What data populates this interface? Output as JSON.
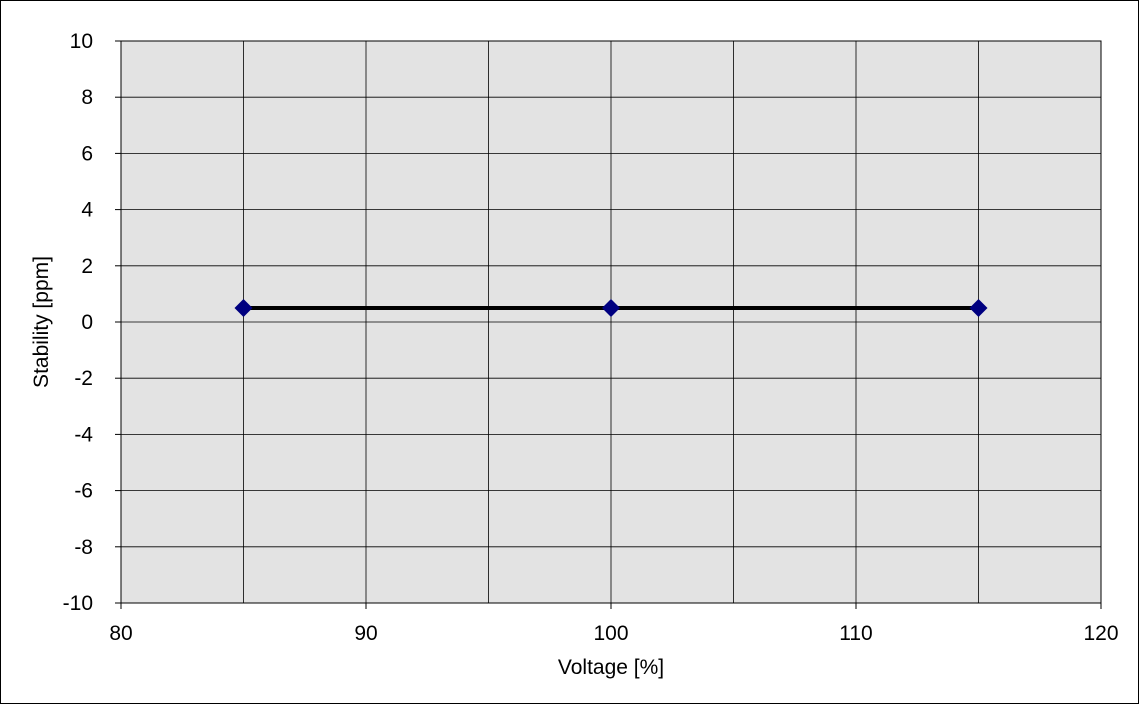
{
  "chart_data": {
    "type": "line",
    "title": "",
    "xlabel": "Voltage [%]",
    "ylabel": "Stability [ppm]",
    "xlim": [
      80,
      120
    ],
    "ylim": [
      -10,
      10
    ],
    "x_ticks": [
      80,
      90,
      100,
      110,
      120
    ],
    "y_ticks": [
      10,
      8,
      6,
      4,
      2,
      0,
      -2,
      -4,
      -6,
      -8,
      -10
    ],
    "x_tick_labels": [
      "80",
      "90",
      "100",
      "110",
      "120"
    ],
    "y_tick_labels": [
      "10",
      "8",
      "6",
      "4",
      "2",
      "0",
      "-2",
      "-4",
      "-6",
      "-8",
      "-10"
    ],
    "grid": true,
    "x_grid_step": 5,
    "y_grid_step": 2,
    "legend": "none",
    "series": [
      {
        "x": [
          85,
          100,
          115
        ],
        "y": [
          0.5,
          0.5,
          0.5
        ]
      }
    ],
    "colors": {
      "plot_background": "#e3e3e3",
      "grid": "#000000",
      "line": "#000000",
      "marker": "#000080"
    }
  }
}
